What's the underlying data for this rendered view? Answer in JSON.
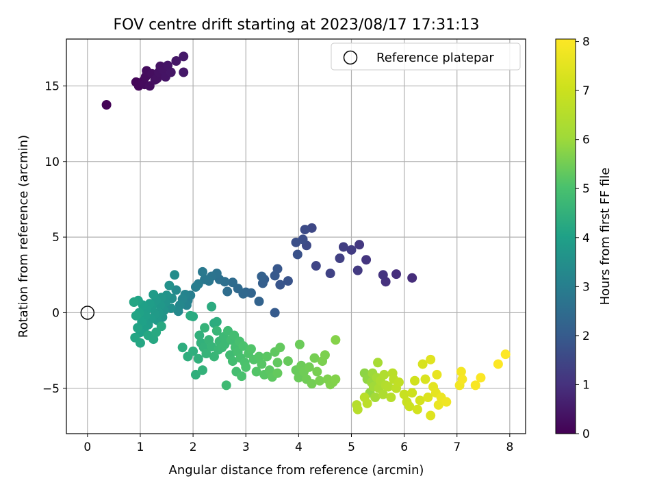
{
  "chart_data": {
    "type": "scatter",
    "title": "FOV centre drift starting at 2023/08/17 17:31:13",
    "xlabel": "Angular distance from reference (arcmin)",
    "ylabel": "Rotation from reference (arcmin)",
    "xlim": [
      -0.4,
      8.3
    ],
    "ylim": [
      -8.0,
      18.1
    ],
    "x_ticks": [
      0,
      1,
      2,
      3,
      4,
      5,
      6,
      7,
      8
    ],
    "y_ticks": [
      -5,
      0,
      5,
      10,
      15
    ],
    "x_tick_labels": [
      "0",
      "1",
      "2",
      "3",
      "4",
      "5",
      "6",
      "7",
      "8"
    ],
    "y_tick_labels": [
      "−5",
      "0",
      "5",
      "10",
      "15"
    ],
    "grid": true,
    "legend_position": "top-right",
    "legend": [
      {
        "label": "Reference platepar",
        "marker": "open-circle"
      }
    ],
    "reference_point": {
      "x": 0,
      "y": 0
    },
    "colorbar": {
      "label": "Hours from first FF file",
      "range": [
        0,
        8.05
      ],
      "ticks": [
        0,
        1,
        2,
        3,
        4,
        5,
        6,
        7,
        8
      ],
      "tick_labels": [
        "0",
        "1",
        "2",
        "3",
        "4",
        "5",
        "6",
        "7",
        "8"
      ],
      "colormap": "viridis"
    },
    "points": [
      [
        0.36,
        13.75,
        0.05
      ],
      [
        0.92,
        15.25,
        0.1
      ],
      [
        0.97,
        15.0,
        0.12
      ],
      [
        1.05,
        15.3,
        0.15
      ],
      [
        1.08,
        15.1,
        0.18
      ],
      [
        1.1,
        15.6,
        0.2
      ],
      [
        1.12,
        16.0,
        0.22
      ],
      [
        1.18,
        15.0,
        0.25
      ],
      [
        1.22,
        15.8,
        0.27
      ],
      [
        1.28,
        15.4,
        0.3
      ],
      [
        1.32,
        15.5,
        0.32
      ],
      [
        1.35,
        15.9,
        0.34
      ],
      [
        1.38,
        16.3,
        0.36
      ],
      [
        1.45,
        16.0,
        0.38
      ],
      [
        1.48,
        15.6,
        0.4
      ],
      [
        1.52,
        16.35,
        0.42
      ],
      [
        1.58,
        15.9,
        0.44
      ],
      [
        1.68,
        16.65,
        0.46
      ],
      [
        1.82,
        15.9,
        0.48
      ],
      [
        1.82,
        16.95,
        0.5
      ],
      [
        6.15,
        2.3,
        0.9
      ],
      [
        5.85,
        2.55,
        0.95
      ],
      [
        5.65,
        2.05,
        1.0
      ],
      [
        5.6,
        2.5,
        1.05
      ],
      [
        5.28,
        3.5,
        1.1
      ],
      [
        5.15,
        4.5,
        1.15
      ],
      [
        5.12,
        2.8,
        1.2
      ],
      [
        5.0,
        4.15,
        1.25
      ],
      [
        4.85,
        4.35,
        1.3
      ],
      [
        4.78,
        3.6,
        1.35
      ],
      [
        4.6,
        2.6,
        1.4
      ],
      [
        4.33,
        3.1,
        1.45
      ],
      [
        4.25,
        5.6,
        1.5
      ],
      [
        4.15,
        4.45,
        1.55
      ],
      [
        4.12,
        5.5,
        1.6
      ],
      [
        4.08,
        4.85,
        1.65
      ],
      [
        3.95,
        4.65,
        1.7
      ],
      [
        3.98,
        3.85,
        1.75
      ],
      [
        3.8,
        2.1,
        1.8
      ],
      [
        3.65,
        1.85,
        1.85
      ],
      [
        3.6,
        2.9,
        1.9
      ],
      [
        3.55,
        2.45,
        1.95
      ],
      [
        3.55,
        0.0,
        2.0
      ],
      [
        3.35,
        2.2,
        2.05
      ],
      [
        3.32,
        1.95,
        2.1
      ],
      [
        3.3,
        2.4,
        2.15
      ],
      [
        3.25,
        0.75,
        2.2
      ],
      [
        3.1,
        1.3,
        2.25
      ],
      [
        3.0,
        1.35,
        2.3
      ],
      [
        2.95,
        1.25,
        2.35
      ],
      [
        2.85,
        1.6,
        2.4
      ],
      [
        2.75,
        2.0,
        2.45
      ],
      [
        2.65,
        1.4,
        2.5
      ],
      [
        2.6,
        2.05,
        2.55
      ],
      [
        2.5,
        2.2,
        2.6
      ],
      [
        2.45,
        2.6,
        2.65
      ],
      [
        2.35,
        2.4,
        2.7
      ],
      [
        2.3,
        2.1,
        2.75
      ],
      [
        2.22,
        2.2,
        2.8
      ],
      [
        2.18,
        2.7,
        2.85
      ],
      [
        2.1,
        1.9,
        2.9
      ],
      [
        2.05,
        1.7,
        2.95
      ],
      [
        1.95,
        1.15,
        3.0
      ],
      [
        1.9,
        0.8,
        3.05
      ],
      [
        1.88,
        0.5,
        3.1
      ],
      [
        1.85,
        1.2,
        3.15
      ],
      [
        1.8,
        0.9,
        3.2
      ],
      [
        1.75,
        0.5,
        3.25
      ],
      [
        1.72,
        0.1,
        3.3
      ],
      [
        1.68,
        1.5,
        3.35
      ],
      [
        1.65,
        2.5,
        3.4
      ],
      [
        1.6,
        0.95,
        3.45
      ],
      [
        1.58,
        0.3,
        3.5
      ],
      [
        1.55,
        1.8,
        3.55
      ],
      [
        1.5,
        1.15,
        3.6
      ],
      [
        1.48,
        0.7,
        3.62
      ],
      [
        1.45,
        0.15,
        3.65
      ],
      [
        1.42,
        -0.3,
        3.68
      ],
      [
        1.4,
        1.0,
        3.7
      ],
      [
        1.38,
        0.5,
        3.72
      ],
      [
        1.35,
        0.0,
        3.75
      ],
      [
        1.32,
        -0.5,
        3.78
      ],
      [
        1.3,
        0.8,
        3.8
      ],
      [
        1.28,
        -0.1,
        3.82
      ],
      [
        1.25,
        1.2,
        3.84
      ],
      [
        1.22,
        0.35,
        3.86
      ],
      [
        1.2,
        -0.4,
        3.88
      ],
      [
        1.18,
        0.6,
        3.9
      ],
      [
        1.15,
        -0.8,
        3.92
      ],
      [
        1.12,
        0.2,
        3.94
      ],
      [
        1.1,
        -0.2,
        3.96
      ],
      [
        1.08,
        -1.0,
        3.98
      ],
      [
        1.05,
        0.5,
        4.0
      ],
      [
        1.03,
        -0.6,
        4.02
      ],
      [
        1.0,
        -1.3,
        4.04
      ],
      [
        0.98,
        0.0,
        4.06
      ],
      [
        0.96,
        0.8,
        4.08
      ],
      [
        0.95,
        -1.0,
        4.1
      ],
      [
        0.92,
        -0.2,
        4.12
      ],
      [
        0.9,
        -1.65,
        4.14
      ],
      [
        0.88,
        0.7,
        4.16
      ],
      [
        1.0,
        -2.0,
        4.18
      ],
      [
        1.15,
        -1.5,
        4.2
      ],
      [
        1.25,
        -1.75,
        4.22
      ],
      [
        1.3,
        -1.3,
        4.24
      ],
      [
        1.4,
        -0.9,
        4.26
      ],
      [
        2.0,
        -0.25,
        4.28
      ],
      [
        1.95,
        -0.2,
        4.3
      ],
      [
        2.35,
        0.4,
        4.32
      ],
      [
        2.4,
        -0.7,
        4.34
      ],
      [
        2.45,
        -0.6,
        4.36
      ],
      [
        1.8,
        -2.3,
        4.38
      ],
      [
        1.9,
        -2.9,
        4.4
      ],
      [
        2.0,
        -2.55,
        4.42
      ],
      [
        2.05,
        -4.1,
        4.44
      ],
      [
        2.1,
        -3.05,
        4.46
      ],
      [
        2.12,
        -1.5,
        4.48
      ],
      [
        2.15,
        -2.0,
        4.5
      ],
      [
        2.18,
        -3.8,
        4.52
      ],
      [
        2.2,
        -2.3,
        4.54
      ],
      [
        2.22,
        -1.0,
        4.56
      ],
      [
        2.25,
        -2.7,
        4.58
      ],
      [
        2.3,
        -1.8,
        4.6
      ],
      [
        2.35,
        -2.25,
        4.62
      ],
      [
        2.4,
        -2.9,
        4.64
      ],
      [
        2.45,
        -1.2,
        4.66
      ],
      [
        2.48,
        -2.45,
        4.68
      ],
      [
        2.5,
        -1.9,
        4.7
      ],
      [
        2.55,
        -2.3,
        4.72
      ],
      [
        2.58,
        -1.6,
        4.74
      ],
      [
        2.6,
        -2.1,
        4.76
      ],
      [
        2.63,
        -4.8,
        4.78
      ],
      [
        2.66,
        -1.2,
        4.8
      ],
      [
        2.7,
        -2.8,
        4.82
      ],
      [
        2.72,
        -1.8,
        4.84
      ],
      [
        2.75,
        -3.2,
        4.86
      ],
      [
        2.78,
        -1.5,
        4.88
      ],
      [
        2.8,
        -2.3,
        4.9
      ],
      [
        2.82,
        -3.9,
        4.92
      ],
      [
        2.85,
        -2.6,
        4.94
      ],
      [
        2.88,
        -1.9,
        4.96
      ],
      [
        2.9,
        -3.0,
        4.98
      ],
      [
        2.92,
        -4.2,
        5.0
      ],
      [
        2.95,
        -2.2,
        5.02
      ],
      [
        2.98,
        -3.3,
        5.04
      ],
      [
        3.0,
        -3.6,
        5.06
      ],
      [
        3.05,
        -2.7,
        5.08
      ],
      [
        3.1,
        -2.4,
        5.1
      ],
      [
        3.15,
        -3.1,
        5.12
      ],
      [
        3.2,
        -3.9,
        5.14
      ],
      [
        3.25,
        -2.9,
        5.16
      ],
      [
        3.3,
        -3.4,
        5.18
      ],
      [
        3.35,
        -4.1,
        5.2
      ],
      [
        3.4,
        -2.9,
        5.22
      ],
      [
        3.45,
        -3.8,
        5.24
      ],
      [
        3.5,
        -4.25,
        5.26
      ],
      [
        3.55,
        -2.6,
        5.28
      ],
      [
        3.6,
        -3.3,
        5.3
      ],
      [
        3.65,
        -2.3,
        5.32
      ],
      [
        3.6,
        -4.0,
        5.34
      ],
      [
        3.8,
        -3.2,
        5.36
      ],
      [
        3.95,
        -3.8,
        5.38
      ],
      [
        4.0,
        -4.3,
        5.4
      ],
      [
        4.02,
        -2.1,
        5.42
      ],
      [
        4.05,
        -3.5,
        5.44
      ],
      [
        4.1,
        -3.9,
        5.46
      ],
      [
        4.15,
        -4.4,
        5.48
      ],
      [
        4.2,
        -3.6,
        5.5
      ],
      [
        4.25,
        -4.7,
        5.52
      ],
      [
        4.3,
        -3.0,
        5.54
      ],
      [
        4.35,
        -3.9,
        5.56
      ],
      [
        4.4,
        -4.5,
        5.58
      ],
      [
        4.45,
        -3.2,
        5.6
      ],
      [
        4.5,
        -2.8,
        5.62
      ],
      [
        4.55,
        -4.4,
        5.64
      ],
      [
        4.6,
        -4.75,
        5.66
      ],
      [
        4.65,
        -4.6,
        5.68
      ],
      [
        4.7,
        -4.4,
        5.7
      ],
      [
        4.7,
        -1.8,
        5.72
      ],
      [
        5.25,
        -4.0,
        5.8
      ],
      [
        5.3,
        -4.4,
        5.85
      ],
      [
        5.35,
        -5.3,
        5.9
      ],
      [
        5.38,
        -4.6,
        5.95
      ],
      [
        5.4,
        -4.0,
        6.0
      ],
      [
        5.42,
        -4.9,
        6.05
      ],
      [
        5.45,
        -5.6,
        6.1
      ],
      [
        5.48,
        -4.3,
        6.15
      ],
      [
        5.5,
        -3.3,
        6.2
      ],
      [
        5.52,
        -5.0,
        6.25
      ],
      [
        5.55,
        -4.5,
        6.3
      ],
      [
        5.6,
        -5.4,
        6.35
      ],
      [
        5.62,
        -4.1,
        6.4
      ],
      [
        5.65,
        -4.8,
        6.45
      ],
      [
        5.7,
        -4.9,
        6.5
      ],
      [
        5.75,
        -5.6,
        6.55
      ],
      [
        5.78,
        -4.0,
        6.6
      ],
      [
        5.8,
        -4.4,
        6.65
      ],
      [
        5.85,
        -5.0,
        6.7
      ],
      [
        5.9,
        -4.6,
        6.75
      ],
      [
        5.1,
        -6.1,
        6.5
      ],
      [
        5.12,
        -6.4,
        6.55
      ],
      [
        5.25,
        -5.6,
        6.6
      ],
      [
        5.3,
        -6.0,
        6.65
      ],
      [
        6.0,
        -5.4,
        6.9
      ],
      [
        6.05,
        -5.9,
        6.95
      ],
      [
        6.1,
        -6.2,
        7.0
      ],
      [
        6.15,
        -5.3,
        7.05
      ],
      [
        6.2,
        -4.5,
        7.1
      ],
      [
        6.25,
        -6.4,
        7.15
      ],
      [
        6.3,
        -5.8,
        7.2
      ],
      [
        6.35,
        -3.4,
        7.25
      ],
      [
        6.4,
        -4.4,
        7.3
      ],
      [
        6.45,
        -5.6,
        7.35
      ],
      [
        6.5,
        -6.8,
        7.4
      ],
      [
        6.5,
        -3.1,
        7.45
      ],
      [
        6.55,
        -4.9,
        7.5
      ],
      [
        6.6,
        -5.3,
        7.55
      ],
      [
        6.62,
        -4.1,
        7.6
      ],
      [
        6.65,
        -6.1,
        7.65
      ],
      [
        6.7,
        -5.6,
        7.7
      ],
      [
        6.8,
        -5.9,
        7.75
      ],
      [
        7.05,
        -4.8,
        7.8
      ],
      [
        7.08,
        -3.9,
        7.85
      ],
      [
        7.1,
        -4.4,
        7.9
      ],
      [
        7.35,
        -4.8,
        7.95
      ],
      [
        7.45,
        -4.3,
        8.0
      ],
      [
        7.78,
        -3.4,
        8.02
      ],
      [
        7.92,
        -2.75,
        8.05
      ]
    ]
  }
}
